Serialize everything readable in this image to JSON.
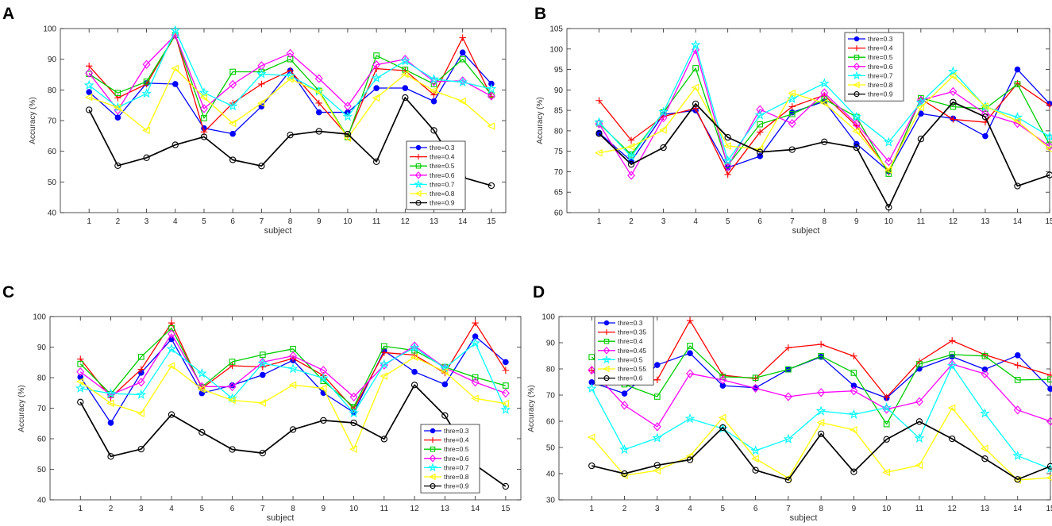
{
  "colors": {
    "thre_0_3": "#0000ff",
    "thre_0_4": "#ff0000",
    "thre_0_5": "#00cc00",
    "thre_0_6": "#ff00ff",
    "thre_0_7": "#00ffff",
    "thre_0_8": "#ffff00",
    "thre_0_9": "#000000"
  },
  "chart_data": [
    {
      "panel_label": "A",
      "type": "line",
      "xlabel": "subject",
      "ylabel": "Accuracy (%)",
      "x": [
        1,
        2,
        3,
        4,
        5,
        6,
        7,
        8,
        9,
        10,
        11,
        12,
        13,
        14,
        15
      ],
      "xlim": [
        0,
        15.5
      ],
      "ylim": [
        40,
        100
      ],
      "yticks": [
        40,
        50,
        60,
        70,
        80,
        90,
        100
      ],
      "legend_position": "bottom-right",
      "series": [
        {
          "name": "thre=0.3",
          "color": "#0000ff",
          "marker": "dot",
          "values": [
            79.3,
            71,
            82.2,
            81.9,
            67.5,
            65.7,
            74.6,
            86.3,
            72.7,
            72.7,
            80.6,
            80.6,
            76.3,
            92.2,
            82
          ]
        },
        {
          "name": "thre=0.4",
          "color": "#ff0000",
          "marker": "plus",
          "values": [
            87.8,
            77.4,
            81.9,
            97.9,
            66.3,
            75.7,
            81.9,
            86.3,
            75.7,
            65,
            86.9,
            86.3,
            78.4,
            97,
            77.8
          ]
        },
        {
          "name": "thre=0.5",
          "color": "#00cc00",
          "marker": "square",
          "values": [
            85.2,
            79,
            82.7,
            97.9,
            70.8,
            85.9,
            85.9,
            90,
            79.7,
            64.6,
            91.2,
            86.6,
            81.9,
            90,
            78.4
          ]
        },
        {
          "name": "thre=0.6",
          "color": "#ff00ff",
          "marker": "diamond",
          "values": [
            85.5,
            73.4,
            88.3,
            97.9,
            73.9,
            81.8,
            87.9,
            91.9,
            83.7,
            74.7,
            88.2,
            90,
            82.7,
            83,
            78
          ]
        },
        {
          "name": "thre=0.7",
          "color": "#00ffff",
          "marker": "star",
          "values": [
            81.5,
            74.3,
            78.8,
            99.4,
            79.1,
            74.7,
            85.2,
            84.6,
            79.5,
            71.3,
            83.8,
            89.4,
            83.5,
            82.5,
            80.3
          ]
        },
        {
          "name": "thre=0.8",
          "color": "#ffff00",
          "marker": "triangle-left",
          "values": [
            77.6,
            74.3,
            66.8,
            87,
            77.6,
            69.1,
            75.7,
            83.6,
            79.3,
            64.3,
            77.4,
            85.1,
            79.7,
            76.3,
            68.2
          ]
        },
        {
          "name": "thre=0.9",
          "color": "#000000",
          "marker": "circle",
          "values": [
            73.5,
            55.3,
            57.9,
            62.1,
            64.7,
            57.2,
            55.2,
            65.3,
            66.5,
            65.6,
            56.6,
            77.5,
            66.8,
            51.5,
            48.8
          ]
        }
      ]
    },
    {
      "panel_label": "B",
      "type": "line",
      "xlabel": "subject",
      "ylabel": "Accuracy (%)",
      "x": [
        1,
        2,
        3,
        4,
        5,
        6,
        7,
        8,
        9,
        10,
        11,
        12,
        13,
        14,
        15
      ],
      "xlim": [
        0,
        15
      ],
      "ylim": [
        60,
        105
      ],
      "yticks": [
        60,
        65,
        70,
        75,
        80,
        85,
        90,
        95,
        100,
        105
      ],
      "legend_position": "top-left",
      "series": [
        {
          "name": "thre=0.3",
          "color": "#0000ff",
          "marker": "dot",
          "values": [
            79.5,
            72.6,
            84,
            85,
            71,
            73.8,
            84.5,
            87.2,
            76.8,
            70.1,
            84.2,
            83,
            78.7,
            95,
            86.6
          ]
        },
        {
          "name": "thre=0.4",
          "color": "#ff0000",
          "marker": "plus",
          "values": [
            87.4,
            77.7,
            83.5,
            85.5,
            69.3,
            79.7,
            85.9,
            88.7,
            81.2,
            69.9,
            87.8,
            82.8,
            82.1,
            91.6,
            86.2
          ]
        },
        {
          "name": "thre=0.5",
          "color": "#00cc00",
          "marker": "square",
          "values": [
            81.8,
            74.2,
            84.5,
            95.3,
            71.6,
            81.6,
            84.1,
            87.7,
            83.4,
            69.5,
            88,
            85.9,
            85.4,
            91.4,
            76.6
          ]
        },
        {
          "name": "thre=0.6",
          "color": "#ff00ff",
          "marker": "diamond",
          "values": [
            81.7,
            69.1,
            83.2,
            99.8,
            71.3,
            85.2,
            81.8,
            89.3,
            81.7,
            72.5,
            87.5,
            89.6,
            84.2,
            81.8,
            76.2
          ]
        },
        {
          "name": "thre=0.7",
          "color": "#00ffff",
          "marker": "star",
          "values": [
            82.1,
            73.7,
            84.6,
            101,
            72.7,
            83.8,
            87.8,
            91.6,
            83.4,
            77.2,
            86.9,
            94.5,
            85.9,
            83.3,
            78.6
          ]
        },
        {
          "name": "thre=0.8",
          "color": "#ffff00",
          "marker": "triangle-left",
          "values": [
            74.6,
            76.1,
            80.2,
            90.6,
            76.3,
            75.5,
            89.2,
            86.8,
            79.9,
            70.4,
            85.7,
            93.4,
            86,
            82.4,
            75.6
          ]
        },
        {
          "name": "thre=0.9",
          "color": "#000000",
          "marker": "circle",
          "values": [
            79.3,
            71.8,
            75.9,
            86.6,
            78.4,
            74.8,
            75.4,
            77.3,
            75.9,
            61.3,
            78,
            87,
            83.4,
            66.5,
            69.2
          ]
        }
      ]
    },
    {
      "panel_label": "C",
      "type": "line",
      "xlabel": "subject",
      "ylabel": "Accuracy (%)",
      "x": [
        1,
        2,
        3,
        4,
        5,
        6,
        7,
        8,
        9,
        10,
        11,
        12,
        13,
        14,
        15
      ],
      "xlim": [
        0,
        15.5
      ],
      "ylim": [
        40,
        100
      ],
      "yticks": [
        40,
        50,
        60,
        70,
        80,
        90,
        100
      ],
      "legend_position": "bottom-right",
      "series": [
        {
          "name": "thre=0.3",
          "color": "#0000ff",
          "marker": "dot",
          "values": [
            80.2,
            65.2,
            81.6,
            92.6,
            74.9,
            77.5,
            80.9,
            85.7,
            75,
            68.6,
            88.8,
            81.9,
            77.8,
            93.5,
            85.1
          ]
        },
        {
          "name": "thre=0.4",
          "color": "#ff0000",
          "marker": "plus",
          "values": [
            86.1,
            73.5,
            82.7,
            97.9,
            76.5,
            83.9,
            83.5,
            86.3,
            80.7,
            69.8,
            88.2,
            87.4,
            81.5,
            97.9,
            82.4
          ]
        },
        {
          "name": "thre=0.5",
          "color": "#00cc00",
          "marker": "square",
          "values": [
            84.5,
            74.6,
            86.8,
            96.2,
            76.9,
            85.2,
            87.5,
            89.4,
            78.9,
            70.4,
            90.3,
            88.9,
            83.5,
            80.1,
            77.4
          ]
        },
        {
          "name": "thre=0.6",
          "color": "#ff00ff",
          "marker": "diamond",
          "values": [
            81.9,
            74.4,
            78.5,
            94.3,
            77.1,
            77,
            85.1,
            87.1,
            82.4,
            73.7,
            84.1,
            90.4,
            83.2,
            78.5,
            74.9
          ]
        },
        {
          "name": "thre=0.7",
          "color": "#00ffff",
          "marker": "star",
          "values": [
            76.5,
            74.8,
            74.4,
            89.4,
            81.4,
            73.2,
            84.7,
            82.9,
            79.8,
            68.4,
            84.4,
            89.8,
            83.1,
            91.3,
            69.5
          ]
        },
        {
          "name": "thre=0.8",
          "color": "#ffff00",
          "marker": "triangle-left",
          "values": [
            78.7,
            71.6,
            68.3,
            83.9,
            76.2,
            72.6,
            71.7,
            77.6,
            76.5,
            56.6,
            80.5,
            86.7,
            81.9,
            73.2,
            71.5
          ]
        },
        {
          "name": "thre=0.9",
          "color": "#000000",
          "marker": "circle",
          "values": [
            72,
            54.2,
            56.6,
            67.9,
            62.1,
            56.5,
            55.3,
            63,
            66,
            65.2,
            59.9,
            77.6,
            67.6,
            51.4,
            44.4
          ]
        }
      ]
    },
    {
      "panel_label": "D",
      "type": "line",
      "xlabel": "subject",
      "ylabel": "Accuracy (%)",
      "x": [
        1,
        2,
        3,
        4,
        5,
        6,
        7,
        8,
        9,
        10,
        11,
        12,
        13,
        14,
        15
      ],
      "xlim": [
        0,
        15
      ],
      "ylim": [
        30,
        100
      ],
      "yticks": [
        30,
        40,
        50,
        60,
        70,
        80,
        90,
        100
      ],
      "legend_position": "top-left",
      "series": [
        {
          "name": "thre=0.3",
          "color": "#0000ff",
          "marker": "dot",
          "values": [
            74.9,
            70.6,
            81.5,
            86,
            73.6,
            72.8,
            79.8,
            84.6,
            73.6,
            68.9,
            80.1,
            84.7,
            79.8,
            85.2,
            72.4
          ]
        },
        {
          "name": "thre=0.35",
          "color": "#ff0000",
          "marker": "plus",
          "values": [
            79.5,
            75.8,
            75.8,
            98.5,
            77.6,
            76.3,
            88.1,
            89.4,
            84.9,
            69.2,
            82.8,
            90.8,
            85.4,
            81.4,
            77.6
          ]
        },
        {
          "name": "thre=0.4",
          "color": "#00cc00",
          "marker": "square",
          "values": [
            84.5,
            74.1,
            69.4,
            88.8,
            77,
            76.6,
            79.8,
            84.9,
            78.5,
            58.9,
            81.8,
            85.5,
            84.9,
            75.8,
            76
          ]
        },
        {
          "name": "thre=0.45",
          "color": "#ff00ff",
          "marker": "diamond",
          "values": [
            79.5,
            66.1,
            57.9,
            78.2,
            75.8,
            72.6,
            69.4,
            71,
            71.6,
            64.6,
            67.5,
            81.8,
            78.1,
            64.3,
            60
          ]
        },
        {
          "name": "thre=0.5",
          "color": "#00ffff",
          "marker": "star",
          "values": [
            72.5,
            49.2,
            53.6,
            61,
            57.2,
            48.8,
            53.2,
            63.9,
            62.6,
            65.2,
            53.5,
            81.2,
            63,
            46.8,
            41.9
          ]
        },
        {
          "name": "thre=0.55",
          "color": "#ffff00",
          "marker": "triangle-left",
          "values": [
            53.9,
            39.3,
            41.2,
            46.7,
            61.4,
            45.7,
            38.3,
            59.5,
            56.7,
            40.5,
            43.2,
            65.1,
            49.6,
            37.6,
            38.4
          ]
        },
        {
          "name": "thre=0.6",
          "color": "#000000",
          "marker": "circle",
          "values": [
            43,
            40,
            43.2,
            45.3,
            57.6,
            41.3,
            37.6,
            55.2,
            40.7,
            53.1,
            59.9,
            53.3,
            45.7,
            37.8,
            42.8
          ]
        }
      ]
    }
  ]
}
